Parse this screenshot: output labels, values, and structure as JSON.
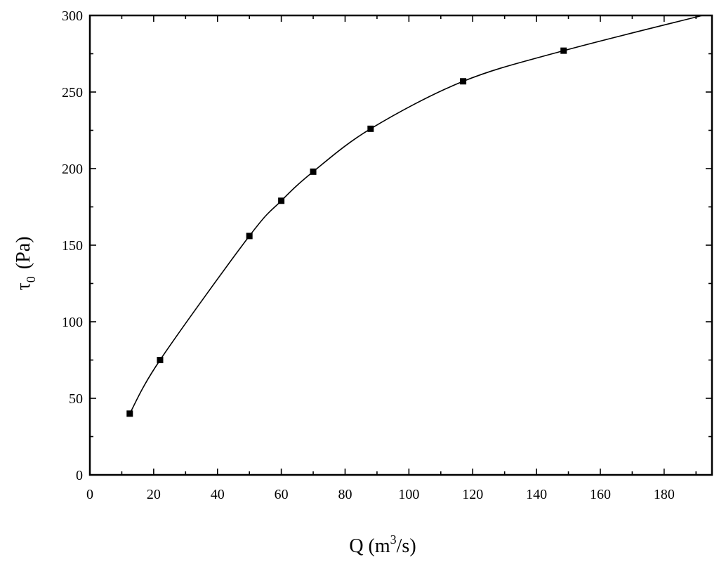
{
  "chart_data": {
    "type": "scatter",
    "title": "",
    "xlabel": {
      "main": "Q (m",
      "sup": "3",
      "tail": "/s)"
    },
    "ylabel": {
      "main": "τ",
      "sub": "0",
      "tail": "(Pa)"
    },
    "xlim": [
      0,
      195
    ],
    "ylim": [
      0,
      300
    ],
    "x_ticks": [
      0,
      20,
      40,
      60,
      80,
      100,
      120,
      140,
      160,
      180
    ],
    "y_ticks": [
      0,
      50,
      100,
      150,
      200,
      250,
      300
    ],
    "grid": false,
    "legend": "none",
    "series": [
      {
        "points": [
          {
            "x": 12.5,
            "y": 40
          },
          {
            "x": 22,
            "y": 75
          },
          {
            "x": 50,
            "y": 156
          },
          {
            "x": 60,
            "y": 179
          },
          {
            "x": 70,
            "y": 198
          },
          {
            "x": 88,
            "y": 226
          },
          {
            "x": 117,
            "y": 257
          },
          {
            "x": 148.5,
            "y": 277
          }
        ],
        "marker": "square",
        "fit_curve": true,
        "fit_curve_end": {
          "x": 192,
          "y": 300
        },
        "color": "#000000"
      }
    ]
  }
}
